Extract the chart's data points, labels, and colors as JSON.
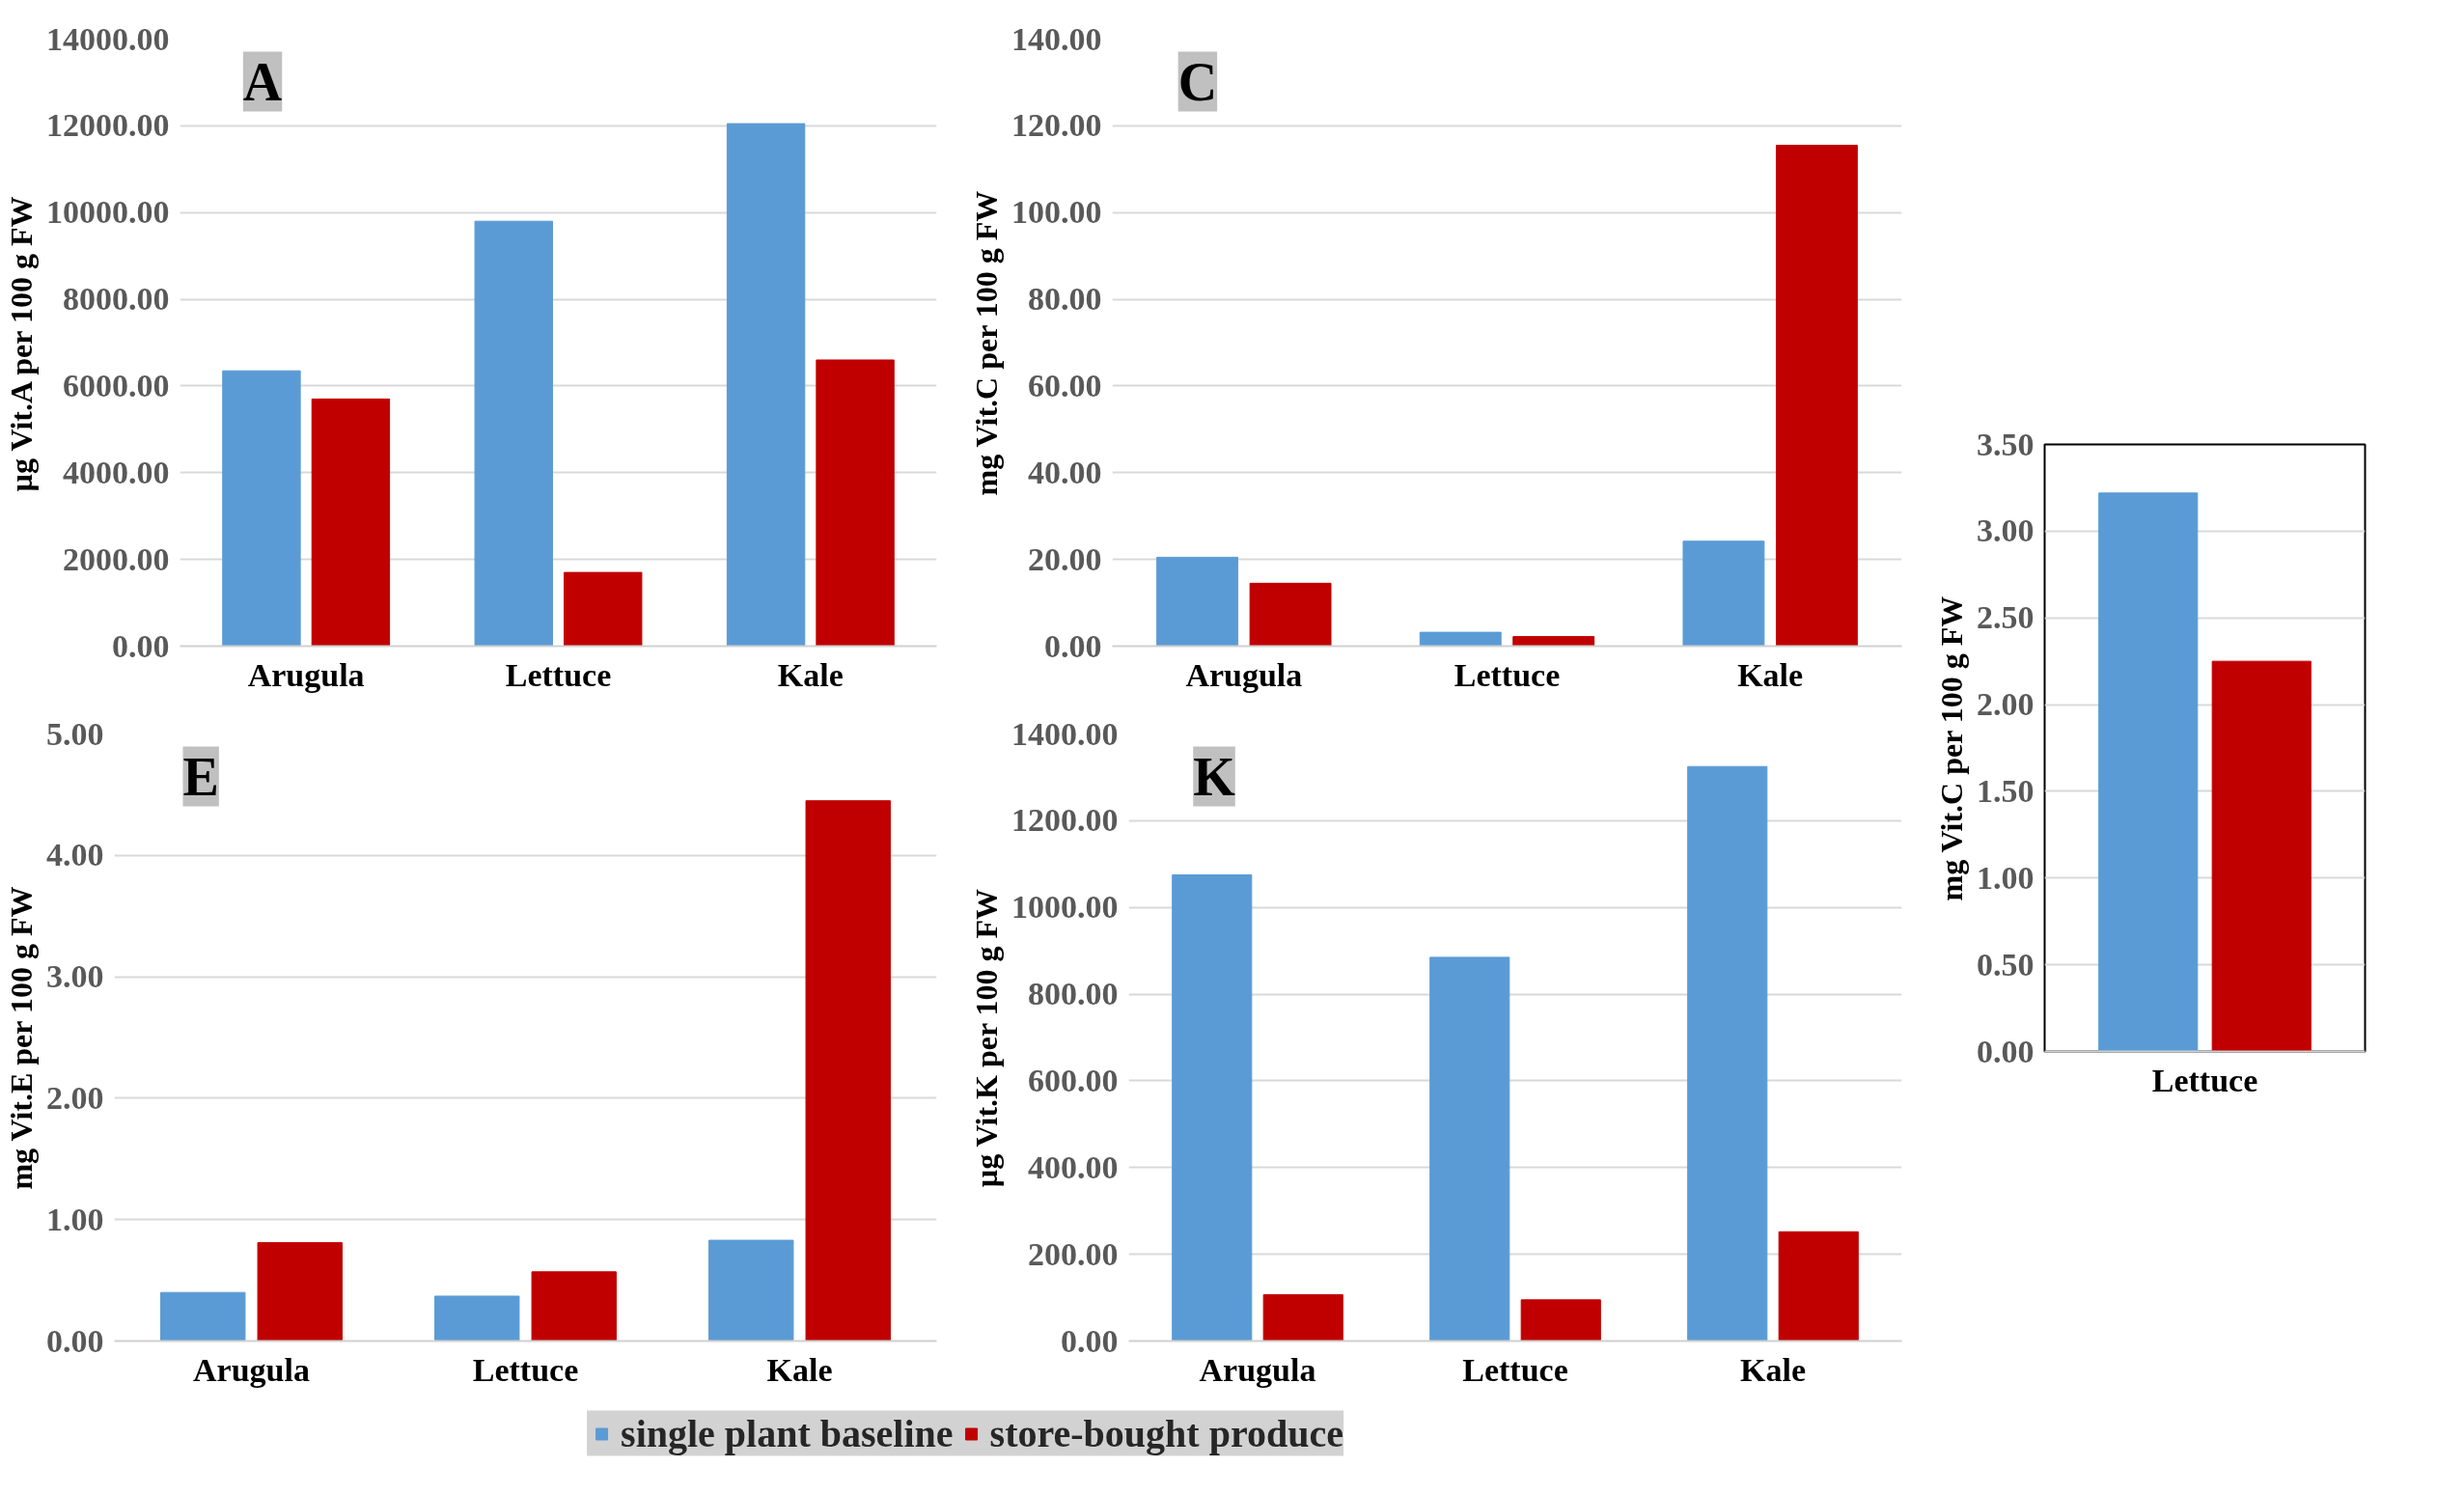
{
  "chart_data": [
    {
      "type": "bar",
      "title": "A",
      "ylabel": "µg Vit.A per 100 g FW",
      "categories": [
        "Arugula",
        "Lettuce",
        "Kale"
      ],
      "series": [
        {
          "color": "#5b9bd5",
          "values": [
            6350,
            9800,
            12050
          ]
        },
        {
          "color": "#c00000",
          "values": [
            5700,
            1700,
            6600
          ]
        }
      ],
      "ylim": [
        0,
        14000
      ],
      "yticks": [
        {
          "value": 0,
          "label": "0.00"
        },
        {
          "value": 2000,
          "label": "2000.00"
        },
        {
          "value": 4000,
          "label": "4000.00"
        },
        {
          "value": 6000,
          "label": "6000.00"
        },
        {
          "value": 8000,
          "label": "8000.00"
        },
        {
          "value": 10000,
          "label": "10000.00"
        },
        {
          "value": 12000,
          "label": "12000.00"
        },
        {
          "value": 14000,
          "label": "14000.00"
        }
      ],
      "grid": "y"
    },
    {
      "type": "bar",
      "title": "C",
      "ylabel": "mg Vit.C per 100 g FW",
      "categories": [
        "Arugula",
        "Lettuce",
        "Kale"
      ],
      "series": [
        {
          "color": "#5b9bd5",
          "values": [
            20.5,
            3.2,
            24.2
          ]
        },
        {
          "color": "#c00000",
          "values": [
            14.5,
            2.2,
            115.5
          ]
        }
      ],
      "ylim": [
        0,
        140
      ],
      "yticks": [
        {
          "value": 0,
          "label": "0.00"
        },
        {
          "value": 20,
          "label": "20.00"
        },
        {
          "value": 40,
          "label": "40.00"
        },
        {
          "value": 60,
          "label": "60.00"
        },
        {
          "value": 80,
          "label": "80.00"
        },
        {
          "value": 100,
          "label": "100.00"
        },
        {
          "value": 120,
          "label": "120.00"
        },
        {
          "value": 140,
          "label": "140.00"
        }
      ],
      "grid": "y"
    },
    {
      "type": "bar",
      "title": "E",
      "ylabel": "mg Vit.E per 100 g FW",
      "categories": [
        "Arugula",
        "Lettuce",
        "Kale"
      ],
      "series": [
        {
          "name": "single plant baseline",
          "color": "#5b9bd5",
          "values": [
            0.4,
            0.37,
            0.83
          ]
        },
        {
          "name": "store-bought produce",
          "color": "#c00000",
          "values": [
            0.81,
            0.57,
            4.45
          ]
        }
      ],
      "ylim": [
        0,
        5
      ],
      "yticks": [
        {
          "value": 0,
          "label": "0.00"
        },
        {
          "value": 1,
          "label": "1.00"
        },
        {
          "value": 2,
          "label": "2.00"
        },
        {
          "value": 3,
          "label": "3.00"
        },
        {
          "value": 4,
          "label": "4.00"
        },
        {
          "value": 5,
          "label": "5.00"
        }
      ],
      "grid": "y",
      "legend": "bottom"
    },
    {
      "type": "bar",
      "title": "K",
      "ylabel": "µg Vit.K per 100 g FW",
      "categories": [
        "Arugula",
        "Lettuce",
        "Kale"
      ],
      "series": [
        {
          "color": "#5b9bd5",
          "values": [
            1075,
            885,
            1325
          ]
        },
        {
          "color": "#c00000",
          "values": [
            107,
            95,
            252
          ]
        }
      ],
      "ylim": [
        0,
        1400
      ],
      "yticks": [
        {
          "value": 0,
          "label": "0.00"
        },
        {
          "value": 200,
          "label": "200.00"
        },
        {
          "value": 400,
          "label": "400.00"
        },
        {
          "value": 600,
          "label": "600.00"
        },
        {
          "value": 800,
          "label": "800.00"
        },
        {
          "value": 1000,
          "label": "1000.00"
        },
        {
          "value": 1200,
          "label": "1200.00"
        },
        {
          "value": 1400,
          "label": "1400.00"
        }
      ],
      "grid": "y"
    },
    {
      "type": "bar",
      "ylabel": "mg Vit.C per 100 g FW",
      "categories": [
        "Lettuce"
      ],
      "series": [
        {
          "color": "#5b9bd5",
          "values": [
            3.22
          ]
        },
        {
          "color": "#c00000",
          "values": [
            2.25
          ]
        }
      ],
      "ylim": [
        0,
        3.5
      ],
      "yticks": [
        {
          "value": 0,
          "label": "0.00"
        },
        {
          "value": 0.5,
          "label": "0.50"
        },
        {
          "value": 1,
          "label": "1.00"
        },
        {
          "value": 1.5,
          "label": "1.50"
        },
        {
          "value": 2,
          "label": "2.00"
        },
        {
          "value": 2.5,
          "label": "2.50"
        },
        {
          "value": 3,
          "label": "3.00"
        },
        {
          "value": 3.5,
          "label": "3.50"
        }
      ],
      "grid": "y"
    }
  ]
}
